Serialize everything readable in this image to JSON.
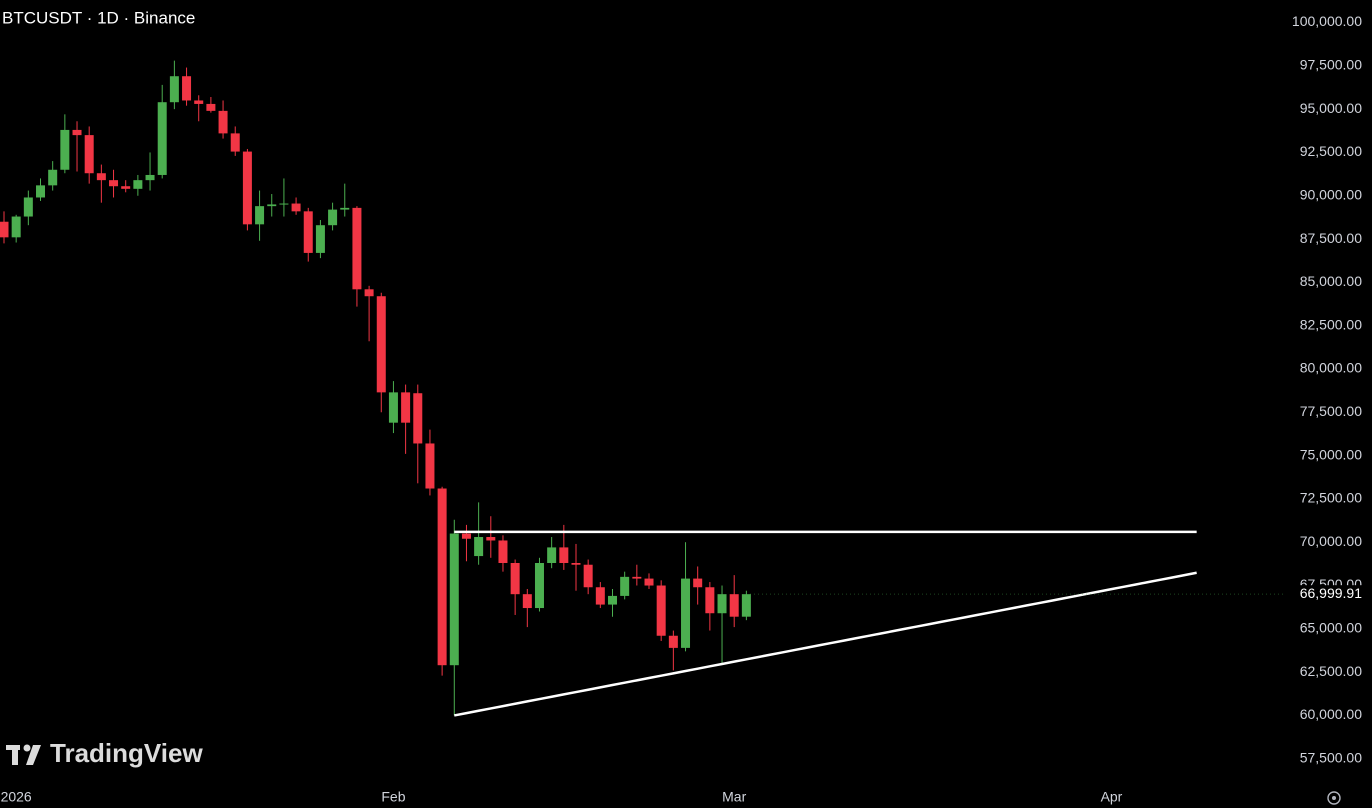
{
  "chart_data": {
    "type": "candlestick",
    "title": "BTCUSDT · 1D · Binance",
    "watermark": "TradingView",
    "categories": [
      null,
      "2026",
      null,
      null,
      null,
      null,
      null,
      null,
      null,
      null,
      null,
      null,
      null,
      null,
      null,
      null,
      null,
      null,
      null,
      null,
      null,
      null,
      null,
      null,
      null,
      null,
      null,
      null,
      null,
      null,
      null,
      null,
      "Feb",
      null,
      null,
      null,
      null,
      null,
      null,
      null,
      null,
      null,
      null,
      null,
      null,
      null,
      null,
      null,
      null,
      null,
      null,
      null,
      null,
      null,
      null,
      null,
      null,
      null,
      null,
      null,
      "Mar",
      null,
      null,
      null,
      null,
      null,
      null,
      null,
      null,
      null,
      null,
      null,
      null,
      null,
      null,
      null,
      null,
      null,
      null,
      null,
      null,
      null,
      null,
      null,
      null,
      null,
      null,
      null,
      null,
      null,
      null,
      "Apr",
      null,
      null,
      null,
      null,
      null,
      null,
      null,
      null,
      null,
      null,
      null
    ],
    "open": [
      88500,
      87600,
      88800,
      89900,
      90600,
      91500,
      93800,
      93500,
      91300,
      90900,
      90550,
      90400,
      90900,
      91200,
      95400,
      96900,
      95500,
      95300,
      94900,
      93600,
      92550,
      88350,
      89400,
      89500,
      89550,
      89100,
      86700,
      88300,
      89200,
      89300,
      84600,
      84200,
      76900,
      78650,
      78600,
      75700,
      73100,
      62900,
      70500,
      69200,
      70300,
      70100,
      68800,
      67000,
      66200,
      68800,
      69700,
      68800,
      68700,
      67400,
      66400,
      66900,
      68000,
      67900,
      67500,
      64600,
      63900,
      67900,
      67400,
      65900,
      67000,
      65700,
      null,
      null,
      null,
      null,
      null,
      null,
      null,
      null,
      null,
      null,
      null,
      null,
      null,
      null,
      null,
      null,
      null,
      null,
      null,
      null,
      null,
      null,
      null,
      null,
      null,
      null,
      null,
      null,
      null,
      null,
      null,
      null,
      null,
      null,
      null,
      null,
      null,
      null,
      null,
      null,
      null
    ],
    "high": [
      89100,
      88900,
      90300,
      91000,
      92000,
      94700,
      94300,
      94000,
      91800,
      91500,
      90900,
      91200,
      92500,
      96400,
      97800,
      97400,
      95800,
      95700,
      95500,
      94000,
      92700,
      90300,
      90100,
      91000,
      89900,
      89300,
      88600,
      89600,
      90700,
      89400,
      84800,
      84400,
      79300,
      79100,
      79100,
      76500,
      73200,
      71300,
      71000,
      72300,
      71500,
      70400,
      69000,
      67300,
      69100,
      70300,
      71000,
      69900,
      69000,
      67700,
      67300,
      68300,
      68700,
      68200,
      67800,
      64900,
      70000,
      68600,
      67700,
      67500,
      68100,
      67200,
      null,
      null,
      null,
      null,
      null,
      null,
      null,
      null,
      null,
      null,
      null,
      null,
      null,
      null,
      null,
      null,
      null,
      null,
      null,
      null,
      null,
      null,
      null,
      null,
      null,
      null,
      null,
      null,
      null,
      null,
      null,
      null,
      null,
      null,
      null,
      null,
      null,
      null,
      null,
      null,
      null
    ],
    "low": [
      87250,
      87300,
      88300,
      89700,
      90300,
      91300,
      91400,
      90700,
      89600,
      89900,
      90200,
      90000,
      90300,
      91000,
      95000,
      95200,
      94300,
      94800,
      93300,
      92300,
      88000,
      87400,
      88800,
      88800,
      88900,
      86200,
      86400,
      88000,
      88800,
      83600,
      81600,
      77500,
      76300,
      75100,
      73400,
      72700,
      62300,
      60000,
      68900,
      68700,
      69100,
      68300,
      65800,
      65100,
      66000,
      68500,
      68400,
      67200,
      67000,
      66200,
      65700,
      66700,
      67500,
      67300,
      64300,
      62600,
      63700,
      66400,
      64900,
      63000,
      65100,
      65500,
      null,
      null,
      null,
      null,
      null,
      null,
      null,
      null,
      null,
      null,
      null,
      null,
      null,
      null,
      null,
      null,
      null,
      null,
      null,
      null,
      null,
      null,
      null,
      null,
      null,
      null,
      null,
      null,
      null,
      null,
      null,
      null,
      null,
      null,
      null,
      null,
      null,
      null,
      null,
      null,
      null
    ],
    "close": [
      87600,
      88800,
      89900,
      90600,
      91500,
      93800,
      93500,
      91300,
      90900,
      90550,
      90400,
      90900,
      91200,
      95400,
      96900,
      95500,
      95300,
      94900,
      93600,
      92550,
      88350,
      89400,
      89500,
      89550,
      89100,
      86700,
      88300,
      89200,
      89300,
      84600,
      84200,
      78650,
      78650,
      76900,
      75700,
      73100,
      62900,
      70500,
      70200,
      70300,
      70100,
      68800,
      67000,
      66200,
      68800,
      69700,
      68800,
      68700,
      67400,
      66400,
      66900,
      68000,
      67900,
      67500,
      64600,
      63900,
      67900,
      67400,
      65900,
      67000,
      65700,
      66999.91,
      null,
      null,
      null,
      null,
      null,
      null,
      null,
      null,
      null,
      null,
      null,
      null,
      null,
      null,
      null,
      null,
      null,
      null,
      null,
      null,
      null,
      null,
      null,
      null,
      null,
      null,
      null,
      null,
      null,
      null,
      null,
      null,
      null,
      null,
      null,
      null,
      null,
      null,
      null,
      null,
      null
    ],
    "up_color": "#4caf50",
    "down_color": "#f23645",
    "overlays": [
      {
        "type": "line",
        "color": "#ffffff",
        "values": [
          null,
          null,
          null,
          null,
          null,
          null,
          null,
          null,
          null,
          null,
          null,
          null,
          null,
          null,
          null,
          null,
          null,
          null,
          null,
          null,
          null,
          null,
          null,
          null,
          null,
          null,
          null,
          null,
          null,
          null,
          null,
          null,
          null,
          null,
          null,
          null,
          null,
          70600,
          70600,
          70600,
          70600,
          70600,
          70600,
          70600,
          70600,
          70600,
          70600,
          70600,
          70600,
          70600,
          70600,
          70600,
          70600,
          70600,
          70600,
          70600,
          70600,
          70600,
          70600,
          70600,
          70600,
          70600,
          70600,
          70600,
          70600,
          70600,
          70600,
          70600,
          70600,
          70600,
          70600,
          70600,
          70600,
          70600,
          70600,
          70600,
          70600,
          70600,
          70600,
          70600,
          70600,
          70600,
          70600,
          70600,
          70600,
          70600,
          70600,
          70600,
          70600,
          70600,
          70600,
          70600,
          70600,
          70600,
          70600,
          70600,
          70600,
          70600,
          70600
        ]
      },
      {
        "type": "line",
        "color": "#ffffff",
        "values": [
          null,
          null,
          null,
          null,
          null,
          null,
          null,
          null,
          null,
          null,
          null,
          null,
          null,
          null,
          null,
          null,
          null,
          null,
          null,
          null,
          null,
          null,
          null,
          null,
          null,
          null,
          null,
          null,
          null,
          null,
          null,
          null,
          null,
          null,
          null,
          null,
          null,
          60000,
          60135,
          60270,
          60405,
          60540,
          60675,
          60810,
          60945,
          61080,
          61215,
          61350,
          61485,
          61620,
          61755,
          61890,
          62025,
          62160,
          62295,
          62430,
          62565,
          62700,
          62835,
          62970,
          63105,
          63240,
          63375,
          63510,
          63645,
          63780,
          63915,
          64050,
          64185,
          64320,
          64455,
          64590,
          64725,
          64860,
          64995,
          65130,
          65265,
          65400,
          65535,
          65670,
          65805,
          65940,
          66075,
          66210,
          66345,
          66480,
          66615,
          66750,
          66885,
          67020,
          67155,
          67290,
          67425,
          67560,
          67695,
          67830,
          67965,
          68100,
          68235,
          null,
          null,
          null,
          null
        ]
      }
    ],
    "last_price": 66999.91,
    "last_price_label": "66,999.91",
    "ylim": [
      56100,
      101300
    ],
    "yticks": [
      {
        "value": 57500,
        "label": "57,500.00"
      },
      {
        "value": 60000,
        "label": "60,000.00"
      },
      {
        "value": 62500,
        "label": "62,500.00"
      },
      {
        "value": 65000,
        "label": "65,000.00"
      },
      {
        "value": 67500,
        "label": "67,500.00"
      },
      {
        "value": 70000,
        "label": "70,000.00"
      },
      {
        "value": 72500,
        "label": "72,500.00"
      },
      {
        "value": 75000,
        "label": "75,000.00"
      },
      {
        "value": 77500,
        "label": "77,500.00"
      },
      {
        "value": 80000,
        "label": "80,000.00"
      },
      {
        "value": 82500,
        "label": "82,500.00"
      },
      {
        "value": 85000,
        "label": "85,000.00"
      },
      {
        "value": 87500,
        "label": "87,500.00"
      },
      {
        "value": 90000,
        "label": "90,000.00"
      },
      {
        "value": 92500,
        "label": "92,500.00"
      },
      {
        "value": 95000,
        "label": "95,000.00"
      },
      {
        "value": 97500,
        "label": "97,500.00"
      },
      {
        "value": 100000,
        "label": "100,000.00"
      }
    ],
    "grid": false
  }
}
